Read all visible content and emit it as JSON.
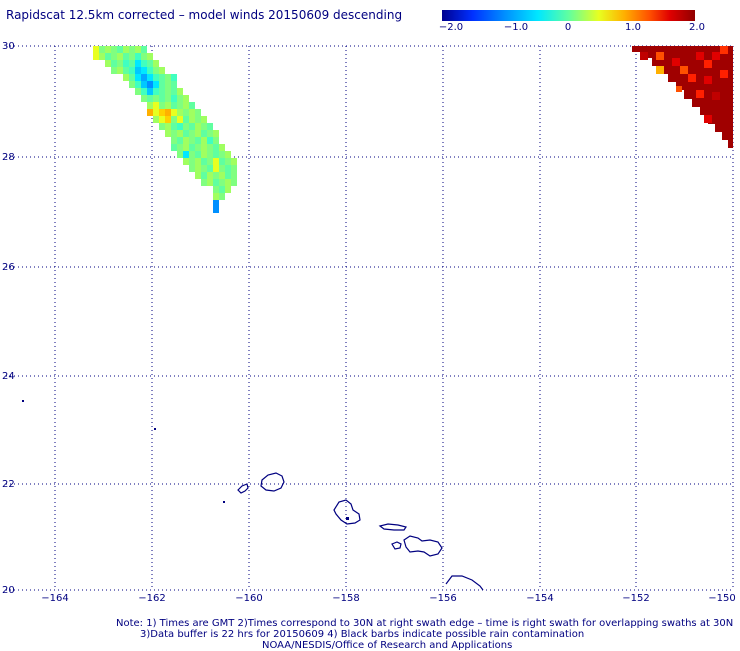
{
  "title": "Rapidscat 12.5km corrected – model winds 20150609 descending",
  "colorbar": {
    "ticks": [
      "−2.0",
      "−1.0",
      "0",
      "1.0",
      "2.0"
    ],
    "min": -2.0,
    "max": 2.0,
    "colors": [
      "#000090",
      "#0030ff",
      "#0090ff",
      "#00e0ff",
      "#40ffc0",
      "#a0ff60",
      "#ffff00",
      "#ffb000",
      "#ff5000",
      "#e00000",
      "#900000"
    ]
  },
  "map": {
    "lat_labels": [
      "30",
      "28",
      "26",
      "24",
      "22",
      "20"
    ],
    "lon_labels": [
      "−164",
      "−162",
      "−160",
      "−158",
      "−156",
      "−154",
      "−152",
      "−150"
    ],
    "lat_range": [
      20,
      30
    ],
    "lon_range": [
      -165,
      -150
    ],
    "coastline_color": "#000080",
    "grid": "dotted"
  },
  "notes": {
    "line1": "Note: 1) Times are GMT 2)Times correspond to 30N at right swath edge – time is right swath for overlapping swaths at 30N",
    "line2": "3)Data buffer is 22 hrs for 20150609 4) Black barbs indicate possible rain contamination",
    "line3": "NOAA/NESDIS/Office of Research and Applications"
  }
}
